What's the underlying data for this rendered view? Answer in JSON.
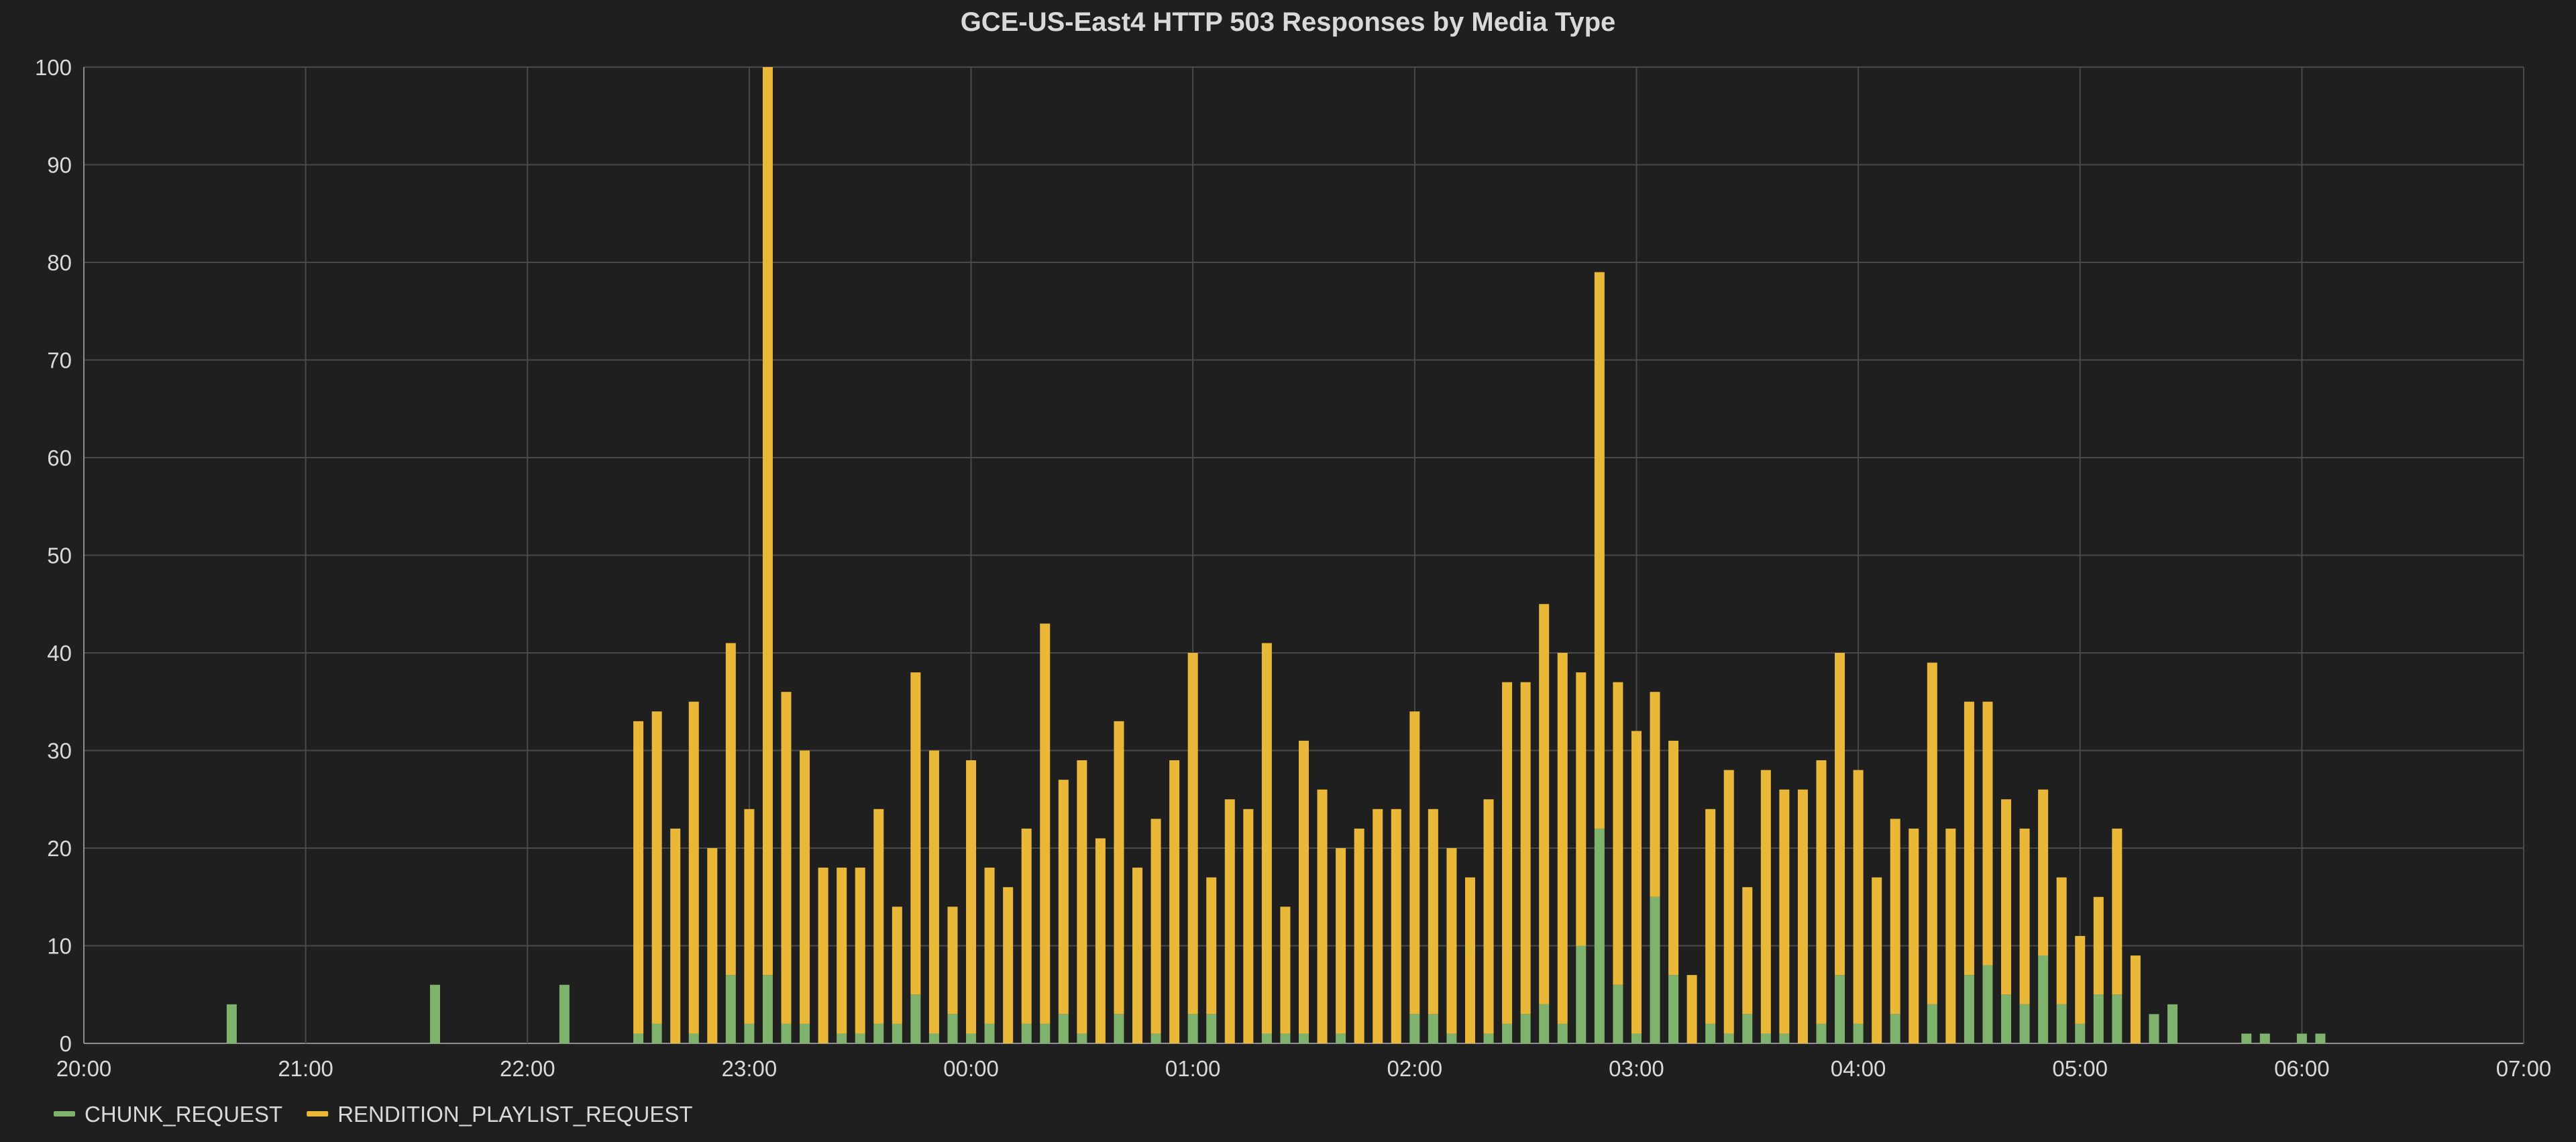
{
  "chart_data": {
    "type": "bar",
    "stacked": true,
    "title": "GCE-US-East4 HTTP 503 Responses by Media Type",
    "xlabel": "",
    "ylabel": "",
    "x_axis": {
      "start": "20:00",
      "end": "07:00",
      "tick_labels": [
        "20:00",
        "21:00",
        "22:00",
        "23:00",
        "00:00",
        "01:00",
        "02:00",
        "03:00",
        "04:00",
        "05:00",
        "06:00",
        "07:00"
      ]
    },
    "y_axis": {
      "ylim": [
        0,
        100
      ],
      "tick_labels": [
        "0",
        "10",
        "20",
        "30",
        "40",
        "50",
        "60",
        "70",
        "80",
        "90",
        "100"
      ]
    },
    "grid": true,
    "legend_position": "bottom-left",
    "colors": {
      "CHUNK_REQUEST": "#7eb26d",
      "RENDITION_PLAYLIST_REQUEST": "#eab839"
    },
    "categories": [
      "20:40",
      "21:35",
      "22:10",
      "22:30",
      "22:35",
      "22:40",
      "22:45",
      "22:50",
      "22:55",
      "23:00",
      "23:05",
      "23:10",
      "23:15",
      "23:20",
      "23:25",
      "23:30",
      "23:35",
      "23:40",
      "23:45",
      "23:50",
      "23:55",
      "00:00",
      "00:05",
      "00:10",
      "00:15",
      "00:20",
      "00:25",
      "00:30",
      "00:35",
      "00:40",
      "00:45",
      "00:50",
      "00:55",
      "01:00",
      "01:05",
      "01:10",
      "01:15",
      "01:20",
      "01:25",
      "01:30",
      "01:35",
      "01:40",
      "01:45",
      "01:50",
      "01:55",
      "02:00",
      "02:05",
      "02:10",
      "02:15",
      "02:20",
      "02:25",
      "02:30",
      "02:35",
      "02:40",
      "02:45",
      "02:50",
      "02:55",
      "03:00",
      "03:05",
      "03:10",
      "03:15",
      "03:20",
      "03:25",
      "03:30",
      "03:35",
      "03:40",
      "03:45",
      "03:50",
      "03:55",
      "04:00",
      "04:05",
      "04:10",
      "04:15",
      "04:20",
      "04:25",
      "04:30",
      "04:35",
      "04:40",
      "04:45",
      "04:50",
      "04:55",
      "05:00",
      "05:05",
      "05:10",
      "05:15",
      "05:20",
      "05:25",
      "05:45",
      "05:50",
      "06:00",
      "06:05"
    ],
    "series": [
      {
        "name": "CHUNK_REQUEST",
        "values": [
          4,
          6,
          6,
          1,
          2,
          0,
          1,
          0,
          7,
          2,
          7,
          2,
          2,
          0,
          1,
          1,
          2,
          2,
          5,
          1,
          3,
          1,
          2,
          0,
          2,
          2,
          3,
          1,
          0,
          3,
          0,
          1,
          0,
          3,
          3,
          0,
          0,
          1,
          1,
          1,
          0,
          1,
          0,
          0,
          0,
          3,
          3,
          1,
          0,
          1,
          2,
          3,
          4,
          2,
          10,
          22,
          6,
          1,
          15,
          7,
          0,
          2,
          1,
          3,
          1,
          1,
          0,
          2,
          7,
          2,
          0,
          3,
          0,
          4,
          0,
          7,
          8,
          5,
          4,
          9,
          4,
          2,
          5,
          5,
          0,
          3,
          4,
          1,
          1,
          1,
          1
        ]
      },
      {
        "name": "RENDITION_PLAYLIST_REQUEST",
        "values": [
          0,
          0,
          0,
          32,
          32,
          22,
          34,
          20,
          34,
          22,
          93,
          34,
          28,
          18,
          17,
          17,
          22,
          12,
          33,
          29,
          11,
          28,
          16,
          16,
          20,
          41,
          24,
          28,
          21,
          30,
          18,
          22,
          29,
          37,
          14,
          25,
          24,
          40,
          13,
          30,
          26,
          19,
          22,
          24,
          24,
          31,
          21,
          19,
          17,
          24,
          35,
          34,
          41,
          38,
          28,
          57,
          31,
          31,
          21,
          24,
          7,
          22,
          27,
          13,
          27,
          25,
          26,
          27,
          33,
          26,
          17,
          20,
          22,
          35,
          22,
          28,
          27,
          20,
          18,
          17,
          13,
          9,
          10,
          17,
          9,
          0,
          0,
          0,
          0,
          0,
          0
        ]
      }
    ]
  }
}
